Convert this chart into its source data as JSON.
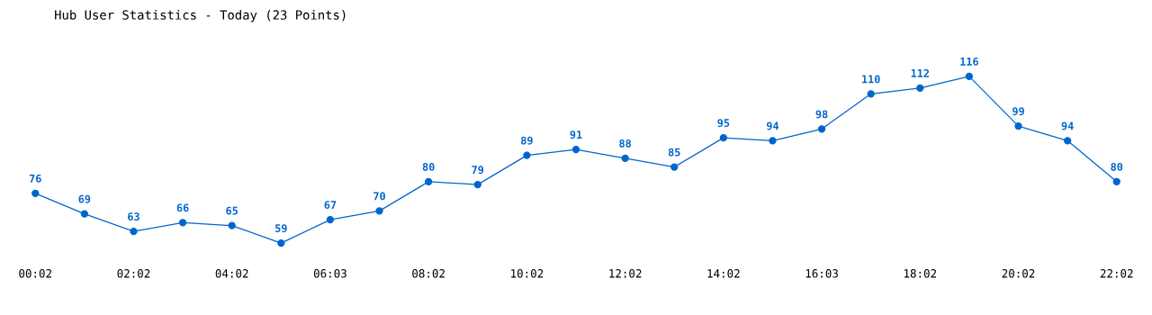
{
  "chart_data": {
    "type": "line",
    "title": "Hub User Statistics - Today (23 Points)",
    "categories": [
      "00:02",
      null,
      "02:02",
      null,
      "04:02",
      null,
      "06:03",
      null,
      "08:02",
      null,
      "10:02",
      null,
      "12:02",
      null,
      "14:02",
      null,
      "16:03",
      null,
      "18:02",
      null,
      "20:02",
      null,
      "22:02"
    ],
    "series": [
      {
        "color": "#0066cc",
        "values": [
          76,
          69,
          63,
          66,
          65,
          59,
          67,
          70,
          80,
          79,
          89,
          91,
          88,
          85,
          95,
          94,
          98,
          110,
          112,
          116,
          99,
          94,
          80
        ]
      }
    ],
    "data_labels": true,
    "marker": "circle",
    "line_style": "solid",
    "grid": false,
    "legend": false,
    "tick_labels": "x"
  }
}
